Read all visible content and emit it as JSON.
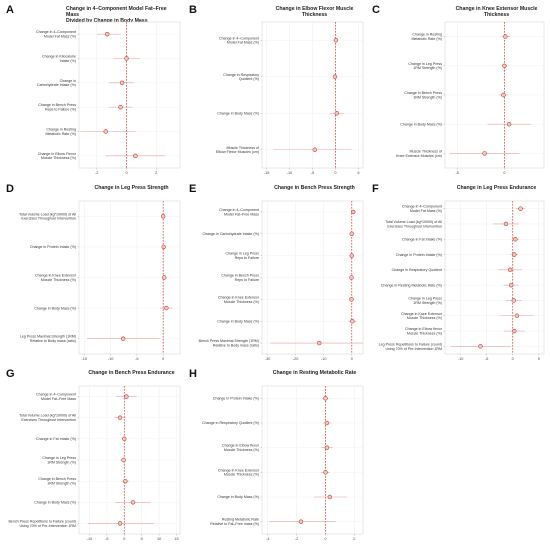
{
  "colors": {
    "point_fill": "#f2c9c6",
    "point_stroke": "#c0392b",
    "ci": "#e6a3a0",
    "zero_line": "#d73027"
  },
  "chart_data": [
    {
      "id": "A",
      "type": "scatter",
      "chart_style": "forest-plot",
      "grid": true,
      "title": "Change in 4–Component Model Fat–Free Mass\nDivided by Change in Body Mass",
      "xlim": [
        -3.2,
        3.6
      ],
      "xticks": [
        -2,
        0,
        2
      ],
      "ref_line": 0,
      "rows": [
        {
          "label": "Change in 4–Component\nModel Fat Mass (%)",
          "est": -1.3,
          "lo": -2.0,
          "hi": -0.4
        },
        {
          "label": "Change in Kilocalorie\nIntake (%)",
          "est": 0.0,
          "lo": -0.9,
          "hi": 0.9
        },
        {
          "label": "Change in\nCarbohydrate Intake (%)",
          "est": -0.3,
          "lo": -1.2,
          "hi": 0.5
        },
        {
          "label": "Change in Bench Press\nReps to Failure (%)",
          "est": -0.4,
          "lo": -1.2,
          "hi": 0.4
        },
        {
          "label": "Change in Resting\nMetabolic Rate (%)",
          "est": -1.4,
          "lo": -3.1,
          "hi": 0.6
        },
        {
          "label": "Change in Elbow Flexor\nMuscle Thickness (%)",
          "est": 0.6,
          "lo": -1.4,
          "hi": 2.6
        }
      ]
    },
    {
      "id": "B",
      "type": "scatter",
      "chart_style": "forest-plot",
      "grid": true,
      "title": "Change in Elbow Flexor Muscle Thickness",
      "xlim": [
        -16,
        6
      ],
      "xticks": [
        -15,
        -10,
        -5,
        0,
        5
      ],
      "ref_line": 0,
      "rows": [
        {
          "label": "Change in 4–Component\nModel Fat Mass (%)",
          "est": 0.1,
          "lo": -0.3,
          "hi": 0.5
        },
        {
          "label": "Change in Respiratory\nQuotient (%)",
          "est": -0.1,
          "lo": -0.5,
          "hi": 0.3
        },
        {
          "label": "Change in Body Mass (%)",
          "est": 0.3,
          "lo": -1.3,
          "hi": 1.9
        },
        {
          "label": "Muscle Thickness of\nElbow Flexor Muscles (cm)",
          "est": -4.5,
          "lo": -13.5,
          "hi": 3.5
        }
      ]
    },
    {
      "id": "C",
      "type": "scatter",
      "chart_style": "forest-plot",
      "grid": true,
      "title": "Change in Knee Extensor Muscle Thickness",
      "xlim": [
        -6.3,
        4.2
      ],
      "xticks": [
        -5,
        0
      ],
      "ref_line": 0,
      "rows": [
        {
          "label": "Change in Resting\nMetabolic Rate (%)",
          "est": 0.1,
          "lo": -0.3,
          "hi": 0.6
        },
        {
          "label": "Change in Leg Press\n1RM Strength (%)",
          "est": 0.0,
          "lo": -0.3,
          "hi": 0.3
        },
        {
          "label": "Change in Bench Press\n1RM Strength (%)",
          "est": -0.1,
          "lo": -0.6,
          "hi": 0.4
        },
        {
          "label": "Change in Body Mass (%)",
          "est": 0.5,
          "lo": -1.8,
          "hi": 2.8
        },
        {
          "label": "Muscle Thickness of\nKnee Extensor Muscles (cm)",
          "est": -2.1,
          "lo": -5.8,
          "hi": 1.6
        }
      ]
    },
    {
      "id": "D",
      "type": "scatter",
      "chart_style": "forest-plot",
      "grid": true,
      "title": "Change in Leg Press Strength",
      "xlim": [
        -16,
        3.2
      ],
      "xticks": [
        -15,
        -10,
        -5,
        0
      ],
      "ref_line": 0,
      "rows": [
        {
          "label": "Total Volume Load (kg*10000) of All\nExercises Throughout Intervention",
          "est": 0.0,
          "lo": -0.2,
          "hi": 0.2
        },
        {
          "label": "Change in Protein Intake (%)",
          "est": 0.1,
          "lo": -0.2,
          "hi": 0.4
        },
        {
          "label": "Change in Knee Extensor\nMuscle Thickness (%)",
          "est": 0.2,
          "lo": -0.2,
          "hi": 0.6
        },
        {
          "label": "Change in Body Mass (%)",
          "est": 0.6,
          "lo": -0.6,
          "hi": 1.8
        },
        {
          "label": "Leg Press Maximal Strength (1RM)\nRelative to Body mass (ratio)",
          "est": -7.6,
          "lo": -14.5,
          "hi": -0.7
        }
      ]
    },
    {
      "id": "E",
      "type": "scatter",
      "chart_style": "forest-plot",
      "grid": true,
      "title": "Change in Bench Press Strength",
      "xlim": [
        -32,
        4
      ],
      "xticks": [
        -30,
        -20,
        -10,
        0
      ],
      "ref_line": 0,
      "rows": [
        {
          "label": "Change in 4–Component\nModel Fat–Free Mass",
          "est": 0.5,
          "lo": -0.3,
          "hi": 1.5
        },
        {
          "label": "Change in Carbohydrate Intake (%)",
          "est": 0.0,
          "lo": -0.4,
          "hi": 0.4
        },
        {
          "label": "Change in Leg Press\nReps to Failure",
          "est": 0.0,
          "lo": -0.4,
          "hi": 0.4
        },
        {
          "label": "Change in Bench Press\nReps to Failure",
          "est": -0.1,
          "lo": -0.5,
          "hi": 0.3
        },
        {
          "label": "Change in Knee Extensor\nMuscle Thickness (%)",
          "est": -0.1,
          "lo": -0.5,
          "hi": 0.3
        },
        {
          "label": "Change in Body Mass (%)",
          "est": 0.2,
          "lo": -1.2,
          "hi": 1.6
        },
        {
          "label": "Bench Press Maximal Strength (1RM)\nRelative to Body mass (ratio)",
          "est": -11.6,
          "lo": -29.0,
          "hi": 4.0
        }
      ]
    },
    {
      "id": "F",
      "type": "scatter",
      "chart_style": "forest-plot",
      "grid": true,
      "title": "Change in Leg Press Endurance",
      "xlim": [
        -13,
        6
      ],
      "xticks": [
        -10,
        -5,
        0,
        5
      ],
      "ref_line": 0,
      "rows": [
        {
          "label": "Change in 4–Component\nModel Fat Mass (%)",
          "est": 1.5,
          "lo": 0.6,
          "hi": 2.4
        },
        {
          "label": "Total Volume Load (kg*10000) of All\nExercises Throughout Intervention",
          "est": -1.3,
          "lo": -3.8,
          "hi": 1.2
        },
        {
          "label": "Change in Fat Intake (%)",
          "est": 0.5,
          "lo": -0.2,
          "hi": 1.2
        },
        {
          "label": "Change in Protein Intake (%)",
          "est": 0.3,
          "lo": -0.4,
          "hi": 1.0
        },
        {
          "label": "Change in Respiratory Quotient",
          "est": -0.5,
          "lo": -2.8,
          "hi": 1.8
        },
        {
          "label": "Change in Resting Metabolic Rate (%)",
          "est": -0.3,
          "lo": -1.8,
          "hi": 1.2
        },
        {
          "label": "Change in Leg Press\n1RM Strength (%)",
          "est": 0.2,
          "lo": -1.3,
          "hi": 1.7
        },
        {
          "label": "Change in Knee Extensor\nMuscle Thickness (%)",
          "est": 0.8,
          "lo": -2.5,
          "hi": 4.1
        },
        {
          "label": "Change in Elbow flexor\nMuscle Thickness (%)",
          "est": 0.3,
          "lo": -1.7,
          "hi": 2.3
        },
        {
          "label": "Leg Press Repetitions to Failure (count)\nUsing 70% of Pre-Intervention 1RM",
          "est": -6.2,
          "lo": -12.0,
          "hi": -0.4
        }
      ]
    },
    {
      "id": "G",
      "type": "scatter",
      "chart_style": "forest-plot",
      "grid": true,
      "title": "Change in Bench Press Endurance",
      "xlim": [
        -13,
        16
      ],
      "xticks": [
        -10,
        -5,
        0,
        5,
        10,
        15
      ],
      "ref_line": 0,
      "rows": [
        {
          "label": "Change in 4–Component\nModel Fat–Free Mass",
          "est": 0.6,
          "lo": -2.4,
          "hi": 3.6
        },
        {
          "label": "Total Volume Load (kg*10000) of All\nExercises Throughout Intervention",
          "est": -1.2,
          "lo": -2.8,
          "hi": 0.4
        },
        {
          "label": "Change in Fat Intake (%)",
          "est": 0.0,
          "lo": -0.6,
          "hi": 0.6
        },
        {
          "label": "Change in Leg Press\n1RM Strength (%)",
          "est": -0.2,
          "lo": -1.0,
          "hi": 0.6
        },
        {
          "label": "Change in Bench Press\n1RM Strength (%)",
          "est": 0.3,
          "lo": -0.8,
          "hi": 1.4
        },
        {
          "label": "Change in Body Mass (%)",
          "est": 2.5,
          "lo": -2.5,
          "hi": 7.5
        },
        {
          "label": "Bench Press Repetitions to Failure (count)\nUsing 70% of Pre-Intervention 1RM",
          "est": -1.2,
          "lo": -10.5,
          "hi": 8.5
        }
      ]
    },
    {
      "id": "H",
      "type": "scatter",
      "chart_style": "forest-plot",
      "grid": true,
      "title": "Change in Resting Metabolic Rate",
      "xlim": [
        -4.4,
        2.6
      ],
      "xticks": [
        -4,
        -2,
        0,
        2
      ],
      "ref_line": 0,
      "rows": [
        {
          "label": "Change in Protein Intake (%)",
          "est": 0.0,
          "lo": -0.2,
          "hi": 0.2
        },
        {
          "label": "Change in Respiratory Quotient (%)",
          "est": 0.1,
          "lo": -0.2,
          "hi": 0.4
        },
        {
          "label": "Change in Elbow flexor\nMuscle Thickness (%)",
          "est": 0.1,
          "lo": -0.3,
          "hi": 0.5
        },
        {
          "label": "Change in Knee Extensor\nMuscle Thickness (%)",
          "est": 0.0,
          "lo": -0.3,
          "hi": 0.3
        },
        {
          "label": "Change in Body Mass (%)",
          "est": 0.3,
          "lo": -0.8,
          "hi": 1.5
        },
        {
          "label": "Resting Metabolic Rate\nRelative to Fat–Free mass (%)",
          "est": -1.7,
          "lo": -3.9,
          "hi": 0.7
        }
      ]
    }
  ]
}
